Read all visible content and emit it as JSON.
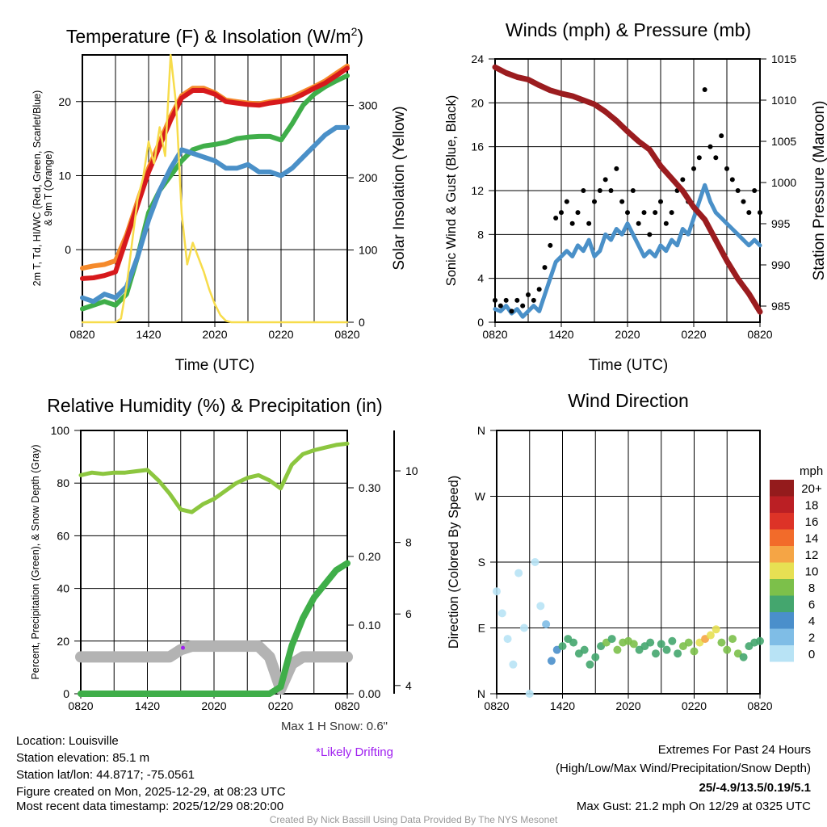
{
  "chart_data": [
    {
      "type": "line",
      "title": "Temperature (F) & Insolation (W/m²)",
      "title_main": "Temperature (F) & Insolation (W/m",
      "title_sup": "2",
      "title_end": ")",
      "xlabel": "Time (UTC)",
      "ylabel_line1": "2m T, Td, HI/WC (Red, Green, Scarlet/Blue)",
      "ylabel_line2": "& 9m T (Orange)",
      "ylabel_right": "Solar Insolation (Yellow)",
      "x_ticks_hours": [
        0,
        6,
        12,
        18,
        24
      ],
      "x_tick_labels": [
        "0820",
        "1420",
        "2020",
        "0220",
        "0820"
      ],
      "ylim": [
        -9.8,
        26.3
      ],
      "y_ticks": [
        0,
        10,
        20
      ],
      "ylim_right": [
        0,
        370
      ],
      "y_ticks_right": [
        0,
        100,
        200,
        300
      ],
      "series_hourly": [
        {
          "name": "2m T",
          "color": "#d7191c",
          "values": [
            -3.9,
            -3.8,
            -3.5,
            -3,
            1.5,
            6,
            10.5,
            14,
            17.5,
            20.5,
            21.5,
            21.5,
            21,
            20,
            19.8,
            19.6,
            19.5,
            19.8,
            20,
            20.3,
            21,
            21.8,
            22.5,
            23.5,
            24.5
          ]
        },
        {
          "name": "9m T",
          "color": "#f58a2b",
          "values": [
            -2.5,
            -2.2,
            -2,
            -1.5,
            2,
            6.5,
            11,
            14.5,
            18,
            20.8,
            21.8,
            21.8,
            21.2,
            20.2,
            20,
            19.8,
            19.7,
            20,
            20.2,
            20.6,
            21.3,
            22,
            22.8,
            23.8,
            24.8
          ]
        },
        {
          "name": "Td",
          "color": "#3fae49",
          "values": [
            -8,
            -7.5,
            -7,
            -7.5,
            -6,
            -1,
            5,
            8,
            10,
            12,
            13.5,
            14,
            14.2,
            14.5,
            15,
            15.2,
            15.3,
            15.3,
            14.8,
            17,
            19.5,
            21,
            22,
            22.8,
            23.5
          ]
        },
        {
          "name": "HI/WC",
          "color": "#4a90c8",
          "values": [
            -6.5,
            -7,
            -6,
            -6.5,
            -5,
            -1,
            4,
            8,
            11,
            13.5,
            13,
            12.5,
            12,
            11,
            11,
            11.5,
            10.5,
            10.5,
            10,
            11,
            12.5,
            14,
            15.5,
            16.5,
            16.5
          ]
        }
      ],
      "solar_half_hourly": {
        "name": "Solar Insolation",
        "color": "#f7dc4b",
        "values": [
          0,
          0,
          0,
          0,
          0,
          0,
          0,
          5,
          50,
          110,
          170,
          200,
          250,
          220,
          270,
          230,
          370,
          300,
          150,
          80,
          110,
          90,
          70,
          45,
          25,
          10,
          2,
          0,
          0,
          0,
          0,
          0,
          0,
          0,
          0,
          0,
          0,
          0,
          0,
          0,
          0,
          0,
          0,
          0,
          0,
          0,
          0,
          0,
          0
        ]
      }
    },
    {
      "type": "line",
      "title": "Winds (mph) & Pressure (mb)",
      "xlabel": "Time (UTC)",
      "ylabel": "Sonic Wind & Gust (Blue, Black)",
      "ylabel_right": "Station Pressure (Maroon)",
      "x_ticks_hours": [
        0,
        6,
        12,
        18,
        24
      ],
      "x_tick_labels": [
        "0820",
        "1420",
        "2020",
        "0220",
        "0820"
      ],
      "ylim": [
        0,
        24
      ],
      "y_ticks": [
        0,
        4,
        8,
        12,
        16,
        20,
        24
      ],
      "ylim_right": [
        983.04,
        1015
      ],
      "y_ticks_right": [
        985,
        990,
        995,
        1000,
        1005,
        1010,
        1015
      ],
      "wind_half_hourly": {
        "name": "Sonic Wind",
        "color": "#4a90c8",
        "values": [
          1.2,
          1.0,
          1.5,
          0.8,
          1.2,
          0.5,
          1.0,
          1.5,
          1.0,
          2.5,
          4.0,
          5.5,
          6.0,
          6.5,
          6.0,
          7.0,
          6.5,
          7.5,
          6.0,
          6.5,
          8.0,
          7.5,
          8.5,
          8.0,
          9.0,
          8.0,
          7.0,
          6.0,
          6.5,
          6.0,
          7.0,
          6.5,
          7.5,
          7.0,
          8.5,
          8.0,
          9.5,
          11.0,
          12.5,
          11.0,
          10.0,
          9.5,
          9.0,
          8.5,
          8.0,
          7.5,
          7.0,
          7.5,
          7.0
        ]
      },
      "gust_half_hourly": {
        "name": "Gust",
        "color": "#000000",
        "values": [
          2,
          1.5,
          2,
          1,
          2,
          1.5,
          2.5,
          2,
          3,
          5,
          7,
          9.5,
          10,
          11,
          9,
          10,
          12,
          9,
          11,
          12,
          13,
          12,
          14,
          11,
          10,
          12,
          9,
          10,
          8,
          10,
          11,
          9,
          10,
          12,
          13,
          11,
          14,
          15,
          21.2,
          16,
          15,
          17,
          14,
          13,
          12,
          11,
          10,
          12,
          10
        ]
      },
      "pressure_hourly": {
        "name": "Station Pressure",
        "color": "#9b1c1f",
        "values": [
          1014,
          1013.3,
          1012.8,
          1012.5,
          1011.8,
          1011.2,
          1010.8,
          1010.5,
          1010,
          1009.5,
          1008.6,
          1007.5,
          1006.2,
          1005,
          1004,
          1002,
          1000.5,
          999,
          997,
          995.5,
          993,
          990.5,
          988.3,
          986.5,
          984.3
        ]
      }
    },
    {
      "type": "line",
      "title": "Relative Humidity (%) & Precipitation (in)",
      "ylabel": "Percent, Precipitation (Green), & Snow Depth (Gray)",
      "x_ticks_hours": [
        0,
        6,
        12,
        18,
        24
      ],
      "x_tick_labels": [
        "0820",
        "1420",
        "2020",
        "0220",
        "0820"
      ],
      "ylim": [
        0,
        100
      ],
      "y_ticks": [
        0,
        20,
        40,
        60,
        80,
        100
      ],
      "ylim_precip": [
        0,
        0.3835
      ],
      "y_ticks_precip": [
        "0.00",
        "0.10",
        "0.20",
        "0.30"
      ],
      "ylim_snow": [
        3.77,
        11.13
      ],
      "y_ticks_snow": [
        4,
        6,
        8,
        10
      ],
      "rh_hourly": {
        "name": "Relative Humidity",
        "color": "#8cc63f",
        "values": [
          83,
          84,
          83.5,
          84,
          84,
          84.5,
          85,
          81,
          76,
          70,
          69,
          72,
          74,
          77,
          80,
          82,
          83,
          81,
          78,
          87,
          91,
          92.5,
          93.5,
          94.5,
          95
        ]
      },
      "precip_hourly": {
        "name": "Precipitation",
        "color": "#3fae49",
        "values": [
          0,
          0,
          0,
          0,
          0,
          0,
          0,
          0,
          0,
          0,
          0,
          0,
          0,
          0,
          0,
          0,
          0,
          0,
          0.01,
          0.07,
          0.11,
          0.14,
          0.16,
          0.18,
          0.19
        ]
      },
      "snow_depth_hourly": {
        "name": "Snow Depth",
        "color": "#b3b3b3",
        "values": [
          4.8,
          4.8,
          4.8,
          4.8,
          4.8,
          4.8,
          4.8,
          4.8,
          4.8,
          5.0,
          5.1,
          5.1,
          5.1,
          5.1,
          5.1,
          5.1,
          5.1,
          4.8,
          3.9,
          4.6,
          4.8,
          4.8,
          4.8,
          4.8,
          4.8
        ]
      },
      "drifting_marker": {
        "hour": 9.2,
        "snow": 5.1,
        "color": "#a020f0"
      },
      "max_snow_label": "Max 1 H Snow: 0.6\"",
      "drifting_label": "*Likely Drifting"
    },
    {
      "type": "scatter",
      "title": "Wind Direction",
      "ylabel": "Direction (Colored By Speed)",
      "x_ticks_hours": [
        0,
        6,
        12,
        18,
        24
      ],
      "x_tick_labels": [
        "0820",
        "1420",
        "2020",
        "0220",
        "0820"
      ],
      "ylim": [
        0,
        360
      ],
      "y_ticks": [
        0,
        90,
        180,
        270,
        360
      ],
      "y_tick_labels": [
        "N",
        "E",
        "S",
        "W",
        "N"
      ],
      "direction_half_hourly": [
        140,
        110,
        75,
        40,
        165,
        90,
        0,
        180,
        120,
        95,
        45,
        60,
        65,
        75,
        70,
        55,
        60,
        40,
        50,
        65,
        70,
        75,
        60,
        70,
        72,
        68,
        60,
        65,
        70,
        55,
        68,
        60,
        72,
        55,
        65,
        70,
        58,
        70,
        75,
        80,
        88,
        70,
        60,
        75,
        55,
        50,
        65,
        70,
        72
      ],
      "legend_title": "mph",
      "legend": [
        {
          "label": "20+",
          "color": "#941b1c"
        },
        {
          "label": "18",
          "color": "#bb1f24"
        },
        {
          "label": "16",
          "color": "#dd3327"
        },
        {
          "label": "14",
          "color": "#f26b2a"
        },
        {
          "label": "12",
          "color": "#f5a545"
        },
        {
          "label": "10",
          "color": "#e7e053"
        },
        {
          "label": "8",
          "color": "#7cc04a"
        },
        {
          "label": "6",
          "color": "#44a66e"
        },
        {
          "label": "4",
          "color": "#4a8fcb"
        },
        {
          "label": "2",
          "color": "#7fbde6"
        },
        {
          "label": "0",
          "color": "#b8e3f5"
        }
      ]
    }
  ],
  "station": {
    "location": "Location: Louisville",
    "elevation": "Station elevation: 85.1 m",
    "latlon": "Station lat/lon: 44.8717; -75.0561",
    "created": "Figure created on Mon, 2025-12-29, at 08:23 UTC",
    "recent": "Most recent data timestamp: 2025/12/29 08:20:00"
  },
  "extremes": {
    "title": "Extremes For Past 24 Hours",
    "subtitle": "(High/Low/Max Wind/Precipitation/Snow Depth)",
    "values": "25/-4.9/13.5/0.19/5.1",
    "values_color": "#d7191c",
    "max_gust": "Max Gust: 21.2 mph On 12/29 at 0325 UTC"
  },
  "credit": "Created By Nick Bassill Using Data Provided By The NYS Mesonet"
}
